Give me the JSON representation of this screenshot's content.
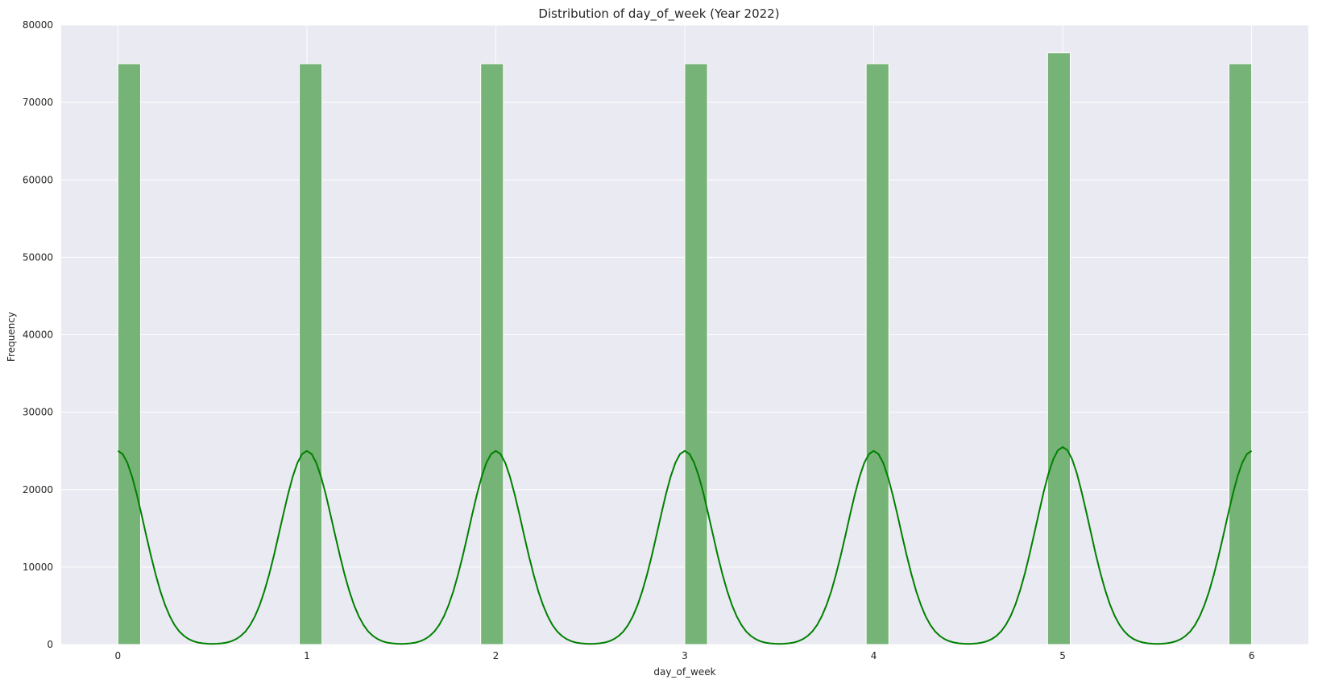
{
  "chart_data": {
    "type": "bar",
    "title": "Distribution of day_of_week (Year 2022)",
    "xlabel": "day_of_week",
    "ylabel": "Frequency",
    "xlim": [
      -0.3,
      6.3
    ],
    "ylim": [
      0,
      80000
    ],
    "xticks": [
      0,
      1,
      2,
      3,
      4,
      5,
      6
    ],
    "yticks": [
      0,
      10000,
      20000,
      30000,
      40000,
      50000,
      60000,
      70000,
      80000
    ],
    "grid": true,
    "bins": [
      {
        "x0": 0.0,
        "x1": 0.12,
        "value": 75000
      },
      {
        "x0": 0.96,
        "x1": 1.08,
        "value": 75000
      },
      {
        "x0": 1.92,
        "x1": 2.04,
        "value": 75000
      },
      {
        "x0": 3.0,
        "x1": 3.12,
        "value": 75000
      },
      {
        "x0": 3.96,
        "x1": 4.08,
        "value": 75000
      },
      {
        "x0": 4.92,
        "x1": 5.04,
        "value": 76400
      },
      {
        "x0": 5.88,
        "x1": 6.0,
        "value": 75000
      }
    ],
    "kde": {
      "peaks": [
        {
          "x": 0,
          "value": 25000
        },
        {
          "x": 1,
          "value": 25000
        },
        {
          "x": 2,
          "value": 25000
        },
        {
          "x": 3,
          "value": 25000
        },
        {
          "x": 4,
          "value": 25000
        },
        {
          "x": 5,
          "value": 25500
        },
        {
          "x": 6,
          "value": 25000
        }
      ],
      "bandwidth": 0.14,
      "x_range": [
        0,
        6
      ]
    },
    "colors": {
      "bar_fill": "#76b376",
      "bar_edge": "#ffffff",
      "kde_line": "#008000",
      "plot_background": "#eaeaf2",
      "grid": "#ffffff"
    }
  }
}
